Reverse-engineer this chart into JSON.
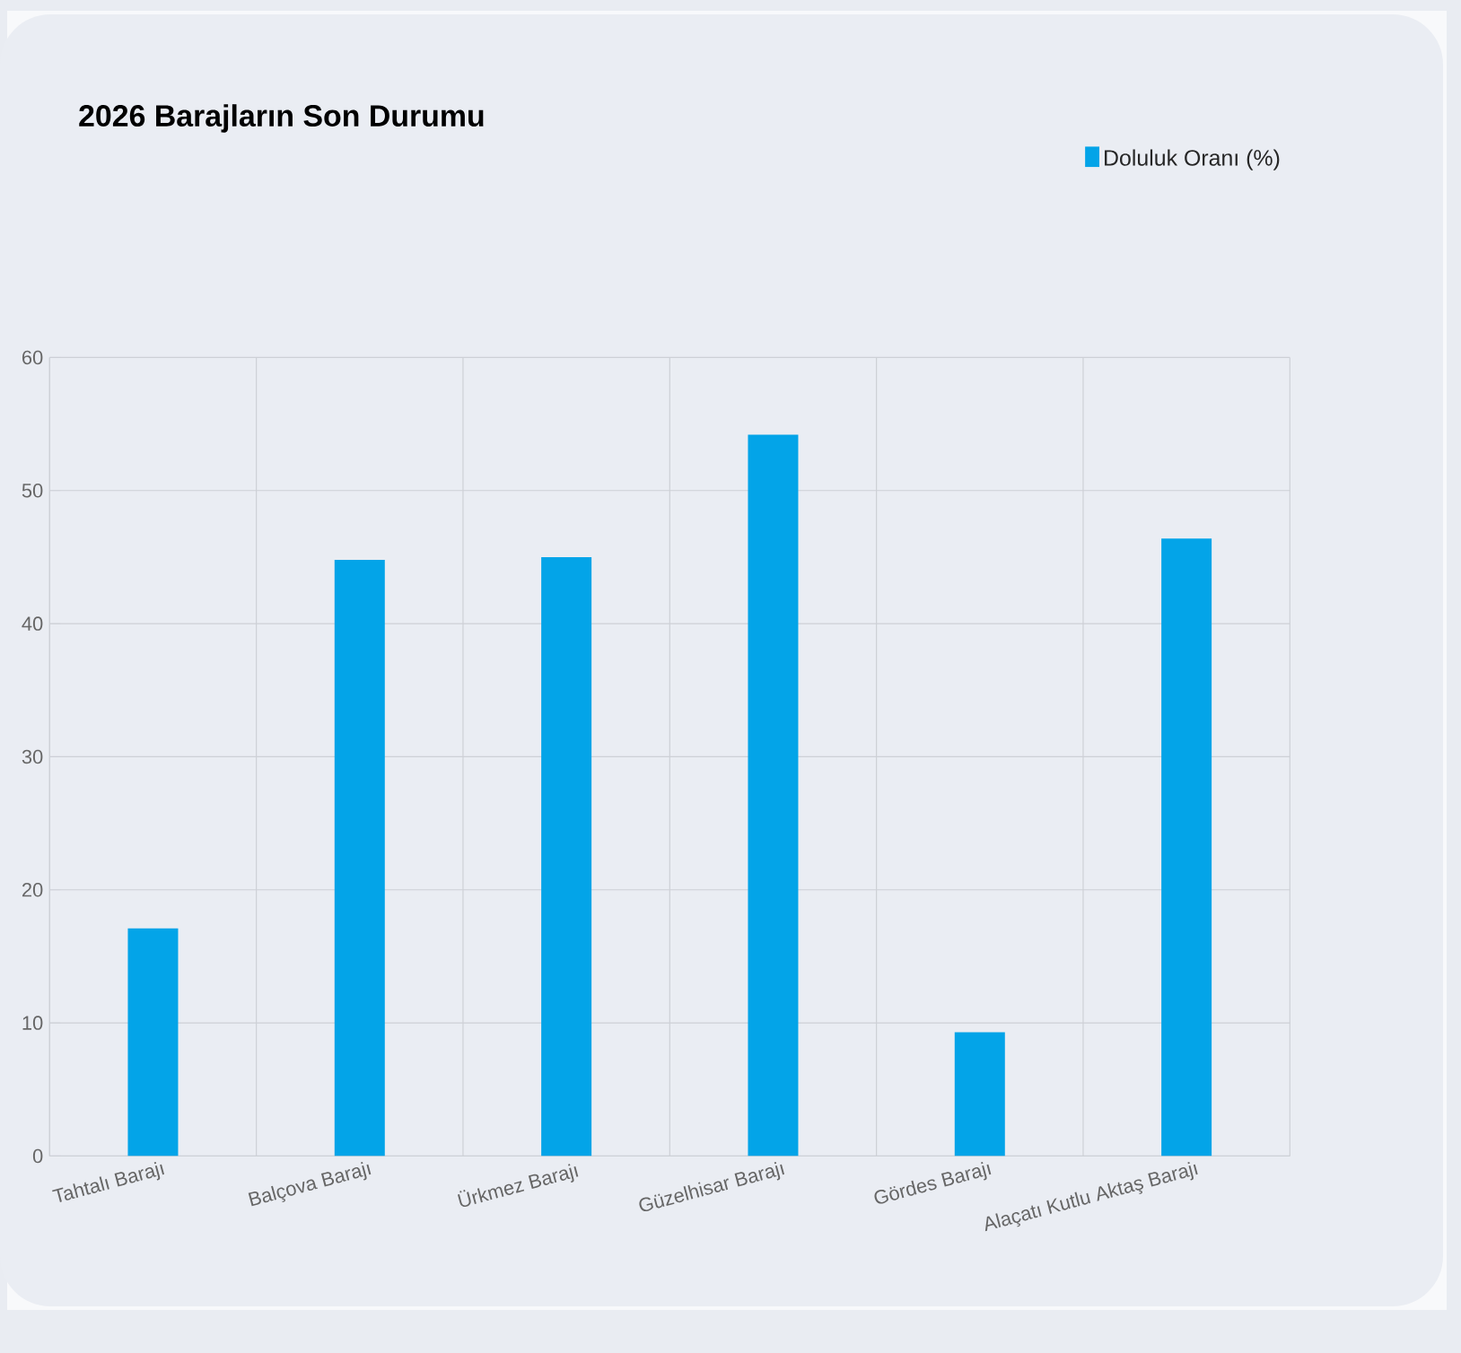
{
  "chart_data": {
    "type": "bar",
    "title": "2026 Barajların Son Durumu",
    "categories": [
      "Tahtalı Barajı",
      "Balçova Barajı",
      "Ürkmez Barajı",
      "Güzelhisar Barajı",
      "Gördes Barajı",
      "Alaçatı Kutlu Aktaş Barajı"
    ],
    "series": [
      {
        "name": "Doluluk Oranı (%)",
        "color": "#03a4e8",
        "values": [
          17.1,
          44.8,
          45.0,
          54.2,
          9.3,
          46.4
        ]
      }
    ],
    "ylim": [
      0,
      60
    ],
    "yticks": [
      0,
      10,
      20,
      30,
      40,
      50,
      60
    ],
    "grid": true,
    "legend": "top right"
  }
}
